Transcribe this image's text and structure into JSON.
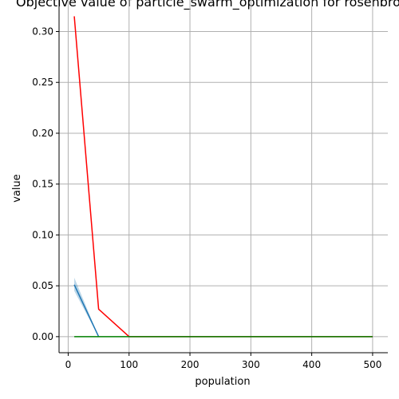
{
  "chart_data": {
    "type": "line",
    "title": "Objective value of particle_swarm_optimization for rosenbrock",
    "xlabel": "population",
    "ylabel": "value",
    "xlim": [
      -15,
      525
    ],
    "ylim": [
      -0.0158,
      0.331
    ],
    "xticks": [
      0,
      100,
      200,
      300,
      400,
      500
    ],
    "yticks": [
      0.0,
      0.05,
      0.1,
      0.15,
      0.2,
      0.25,
      0.3
    ],
    "xtick_labels": [
      "0",
      "100",
      "200",
      "300",
      "400",
      "500"
    ],
    "ytick_labels": [
      "0.00",
      "0.05",
      "0.10",
      "0.15",
      "0.20",
      "0.25",
      "0.30"
    ],
    "grid": true,
    "legend": "none",
    "series": [
      {
        "color": "#ff0000",
        "x": [
          10,
          50,
          100,
          500
        ],
        "y": [
          0.315,
          0.027,
          0.0,
          0.0
        ]
      },
      {
        "color": "#1f77b4",
        "x": [
          10,
          50
        ],
        "y": [
          0.051,
          0.0
        ],
        "band_low": [
          0.045,
          0.0
        ],
        "band_high": [
          0.058,
          0.0
        ]
      },
      {
        "color": "#008000",
        "x": [
          10,
          50,
          100,
          500
        ],
        "y": [
          0.0,
          0.0,
          0.0,
          0.0
        ]
      }
    ]
  }
}
